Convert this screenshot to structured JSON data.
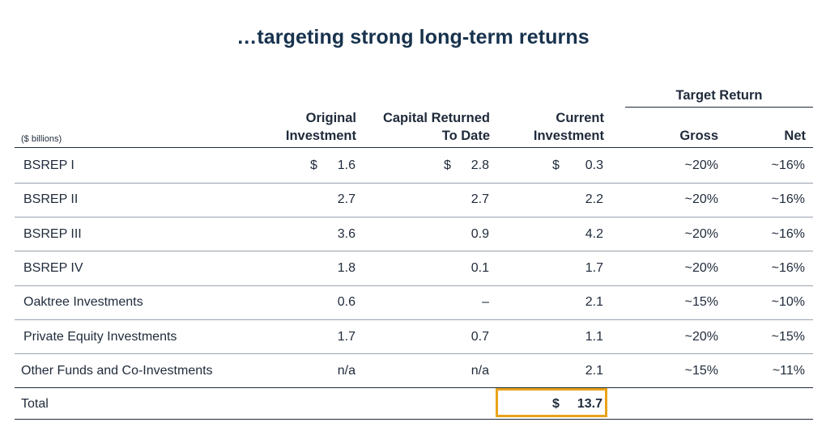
{
  "title": "…targeting strong long-term returns",
  "units": "($ billions)",
  "headers": {
    "original_investment": [
      "Original",
      "Investment"
    ],
    "capital_returned": [
      "Capital Returned",
      "To Date"
    ],
    "current_investment": [
      "Current",
      "Investment"
    ],
    "target_return": "Target Return",
    "gross": "Gross",
    "net": "Net"
  },
  "currency_symbol": "$",
  "rows": [
    {
      "name": "BSREP I",
      "original": "1.6",
      "returned": "2.8",
      "current": "0.3",
      "gross": "~20%",
      "net": "~16%"
    },
    {
      "name": "BSREP II",
      "original": "2.7",
      "returned": "2.7",
      "current": "2.2",
      "gross": "~20%",
      "net": "~16%"
    },
    {
      "name": "BSREP III",
      "original": "3.6",
      "returned": "0.9",
      "current": "4.2",
      "gross": "~20%",
      "net": "~16%"
    },
    {
      "name": "BSREP IV",
      "original": "1.8",
      "returned": "0.1",
      "current": "1.7",
      "gross": "~20%",
      "net": "~16%"
    },
    {
      "name": "Oaktree Investments",
      "original": "0.6",
      "returned": "–",
      "current": "2.1",
      "gross": "~15%",
      "net": "~10%"
    },
    {
      "name": "Private Equity Investments",
      "original": "1.7",
      "returned": "0.7",
      "current": "1.1",
      "gross": "~20%",
      "net": "~15%"
    },
    {
      "name": "Other Funds and Co-Investments",
      "original": "n/a",
      "returned": "n/a",
      "current": "2.1",
      "gross": "~15%",
      "net": "~11%"
    }
  ],
  "total": {
    "label": "Total",
    "current": "13.7"
  },
  "colors": {
    "text": "#1f2a3a",
    "title": "#17324d",
    "highlight": "#e8a31a"
  }
}
